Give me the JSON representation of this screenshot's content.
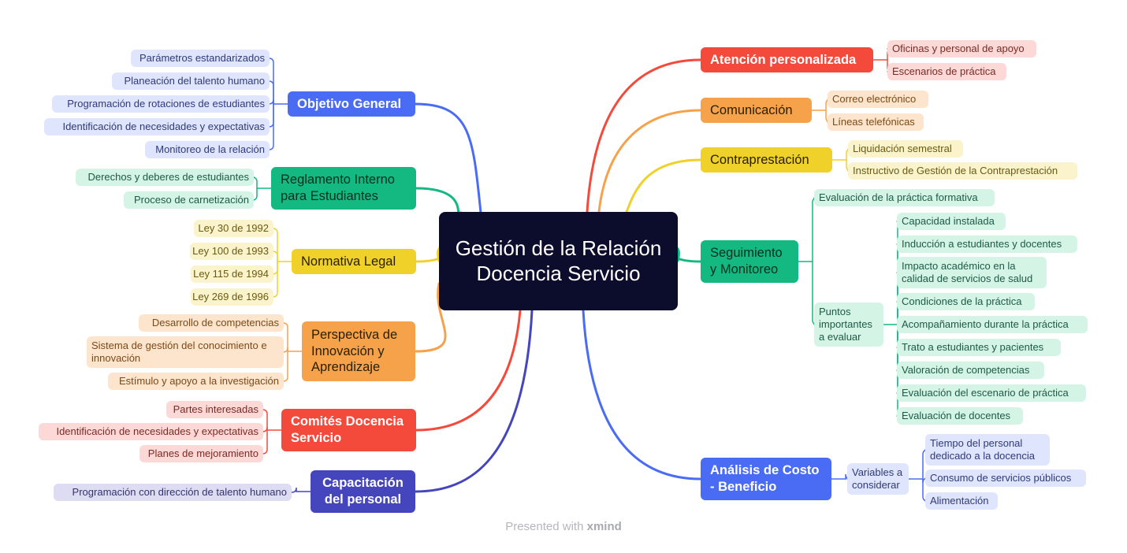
{
  "central_topic": "Gestión de la Relación Docencia Servicio",
  "footer": {
    "prefix": "Presented with",
    "brand": "xmind"
  },
  "colors": {
    "central": "#0c0c2c",
    "blue": "#4a6cf5",
    "green": "#14b981",
    "yellow": "#f0d12a",
    "orange": "#f5a24b",
    "red": "#f44a3c",
    "indigo": "#4545bd"
  },
  "left_branches": [
    {
      "label": "Objetivo General",
      "children": [
        "Parámetros estandarizados",
        "Planeación del talento humano",
        "Programación de rotaciones de estudiantes",
        "Identificación de necesidades y expectativas",
        "Monitoreo de la relación"
      ]
    },
    {
      "label": "Reglamento Interno para Estudiantes",
      "children": [
        "Derechos y deberes de estudiantes",
        "Proceso de carnetización"
      ]
    },
    {
      "label": "Normativa Legal",
      "children": [
        "Ley 30 de 1992",
        "Ley 100 de 1993",
        "Ley 115 de 1994",
        "Ley 269 de 1996"
      ]
    },
    {
      "label": "Perspectiva de Innovación y Aprendizaje",
      "children": [
        "Desarrollo de competencias",
        "Sistema de gestión del conocimiento e innovación",
        "Estímulo y apoyo a la investigación"
      ]
    },
    {
      "label": "Comités Docencia Servicio",
      "children": [
        "Partes interesadas",
        "Identificación de necesidades y expectativas",
        "Planes de mejoramiento"
      ]
    },
    {
      "label": "Capacitación del personal",
      "children": [
        "Programación con dirección de talento humano"
      ]
    }
  ],
  "right_branches": [
    {
      "label": "Atención personalizada",
      "children": [
        "Oficinas y personal de apoyo",
        "Escenarios de práctica"
      ]
    },
    {
      "label": "Comunicación",
      "children": [
        "Correo electrónico",
        "Líneas telefónicas"
      ]
    },
    {
      "label": "Contraprestación",
      "children": [
        "Liquidación semestral",
        "Instructivo de Gestión de la Contraprestación"
      ]
    },
    {
      "label": "Seguimiento y Monitoreo",
      "children": [
        "Evaluación de la práctica formativa"
      ],
      "subgroup": {
        "label": "Puntos importantes a evaluar",
        "children": [
          "Capacidad instalada",
          "Inducción a estudiantes y docentes",
          "Impacto académico en la calidad de servicios de salud",
          "Condiciones de la práctica",
          "Acompañamiento durante la práctica",
          "Trato a estudiantes y pacientes",
          "Valoración de competencias",
          "Evaluación del escenario de práctica",
          "Evaluación de docentes"
        ]
      }
    },
    {
      "label": "Análisis de Costo - Beneficio",
      "subgroup": {
        "label": "Variables a considerar",
        "children": [
          "Tiempo del personal dedicado a la docencia",
          "Consumo de servicios públicos",
          "Alimentación"
        ]
      }
    }
  ]
}
